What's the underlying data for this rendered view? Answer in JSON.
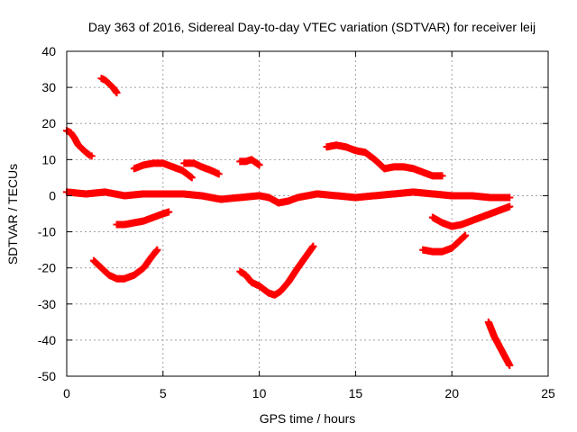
{
  "chart_data": {
    "type": "scatter",
    "title": "Day 363 of 2016, Sidereal Day-to-day VTEC variation (SDTVAR) for receiver leij",
    "xlabel": "GPS time / hours",
    "ylabel": "SDTVAR / TECUs",
    "xlim": [
      0,
      25
    ],
    "ylim": [
      -50,
      40
    ],
    "x_ticks": [
      0,
      5,
      10,
      15,
      20,
      25
    ],
    "x_tick_labels": [
      "0",
      "5",
      "10",
      "15",
      "20",
      "25"
    ],
    "y_ticks": [
      40,
      30,
      20,
      10,
      0,
      -10,
      -20,
      -30,
      -40,
      -50
    ],
    "y_tick_labels": [
      "40",
      "30",
      "20",
      "10",
      "0",
      "-10",
      "-20",
      "-30",
      "-40",
      "-50"
    ],
    "grid": true,
    "legend": "none",
    "marker": "plus",
    "color": "#ff0000",
    "series": [
      {
        "x": [
          0.0,
          0.2,
          0.4,
          0.6,
          0.8,
          1.0,
          1.2,
          1.3
        ],
        "y": [
          18,
          17.5,
          16,
          14,
          13,
          12,
          11.2,
          11
        ]
      },
      {
        "x": [
          1.8,
          2.0,
          2.2,
          2.4,
          2.6
        ],
        "y": [
          32.5,
          32,
          31,
          30,
          28.5
        ]
      },
      {
        "x": [
          0.0,
          1.0,
          2.0,
          3.0,
          4.0,
          5.0,
          6.0,
          7.0,
          8.0,
          9.0,
          10.0,
          10.5,
          11.0,
          11.5,
          12.0,
          13.0,
          14.0,
          15.0,
          16.0,
          17.0,
          18.0,
          19.0,
          20.0,
          21.0,
          22.0,
          23.0
        ],
        "y": [
          1,
          0.5,
          1,
          0,
          0.5,
          0.5,
          0.5,
          0,
          -1,
          -0.5,
          0,
          -0.5,
          -2,
          -1.5,
          -0.5,
          0.5,
          0,
          -0.5,
          0,
          0.5,
          1,
          0.5,
          0,
          0,
          -0.5,
          -0.5
        ]
      },
      {
        "x": [
          2.6,
          3.0,
          3.5,
          4.0,
          4.5,
          5.0,
          5.3
        ],
        "y": [
          -8,
          -8,
          -7.5,
          -7,
          -6,
          -5,
          -4.5
        ]
      },
      {
        "x": [
          1.4,
          1.8,
          2.2,
          2.6,
          3.0,
          3.5,
          4.0,
          4.4,
          4.7
        ],
        "y": [
          -18,
          -20,
          -22,
          -23,
          -23,
          -22,
          -20,
          -17,
          -15
        ]
      },
      {
        "x": [
          3.5,
          4.0,
          4.5,
          5.0,
          5.5,
          6.0,
          6.5
        ],
        "y": [
          7.5,
          8.5,
          9,
          9,
          8,
          7,
          5
        ]
      },
      {
        "x": [
          6.1,
          6.6,
          7.0,
          7.5,
          7.9
        ],
        "y": [
          9,
          9,
          8,
          7,
          6
        ]
      },
      {
        "x": [
          9.0,
          9.3,
          9.6,
          10.0
        ],
        "y": [
          9.5,
          9.5,
          10,
          8.5
        ]
      },
      {
        "x": [
          9.0,
          9.3,
          9.6,
          10.0,
          10.5,
          10.8,
          11.1,
          11.5,
          12.0,
          12.4,
          12.8
        ],
        "y": [
          -21,
          -22,
          -24,
          -25,
          -27,
          -27.5,
          -26.5,
          -24,
          -20,
          -17,
          -14
        ]
      },
      {
        "x": [
          13.5,
          14.0,
          14.5,
          15.0,
          15.5,
          16.0,
          16.5
        ],
        "y": [
          13.5,
          14,
          13.5,
          12.5,
          12,
          10,
          7.5
        ]
      },
      {
        "x": [
          16.5,
          17.0,
          17.5,
          18.0,
          18.5,
          19.0,
          19.5
        ],
        "y": [
          7.5,
          8,
          8,
          7.5,
          6.5,
          5.5,
          5.5
        ]
      },
      {
        "x": [
          18.5,
          19.0,
          19.5,
          20.0,
          20.3,
          20.7
        ],
        "y": [
          -15,
          -15.5,
          -15.5,
          -14.5,
          -13,
          -11
        ]
      },
      {
        "x": [
          19.0,
          19.5,
          20.0,
          20.5,
          21.0,
          21.5,
          22.0,
          22.5,
          23.0
        ],
        "y": [
          -6,
          -7.5,
          -8.5,
          -8,
          -7,
          -6,
          -5,
          -4,
          -3
        ]
      },
      {
        "x": [
          21.9,
          22.2,
          22.5,
          22.8,
          23.0
        ],
        "y": [
          -35,
          -39,
          -42,
          -45,
          -47
        ]
      }
    ]
  }
}
